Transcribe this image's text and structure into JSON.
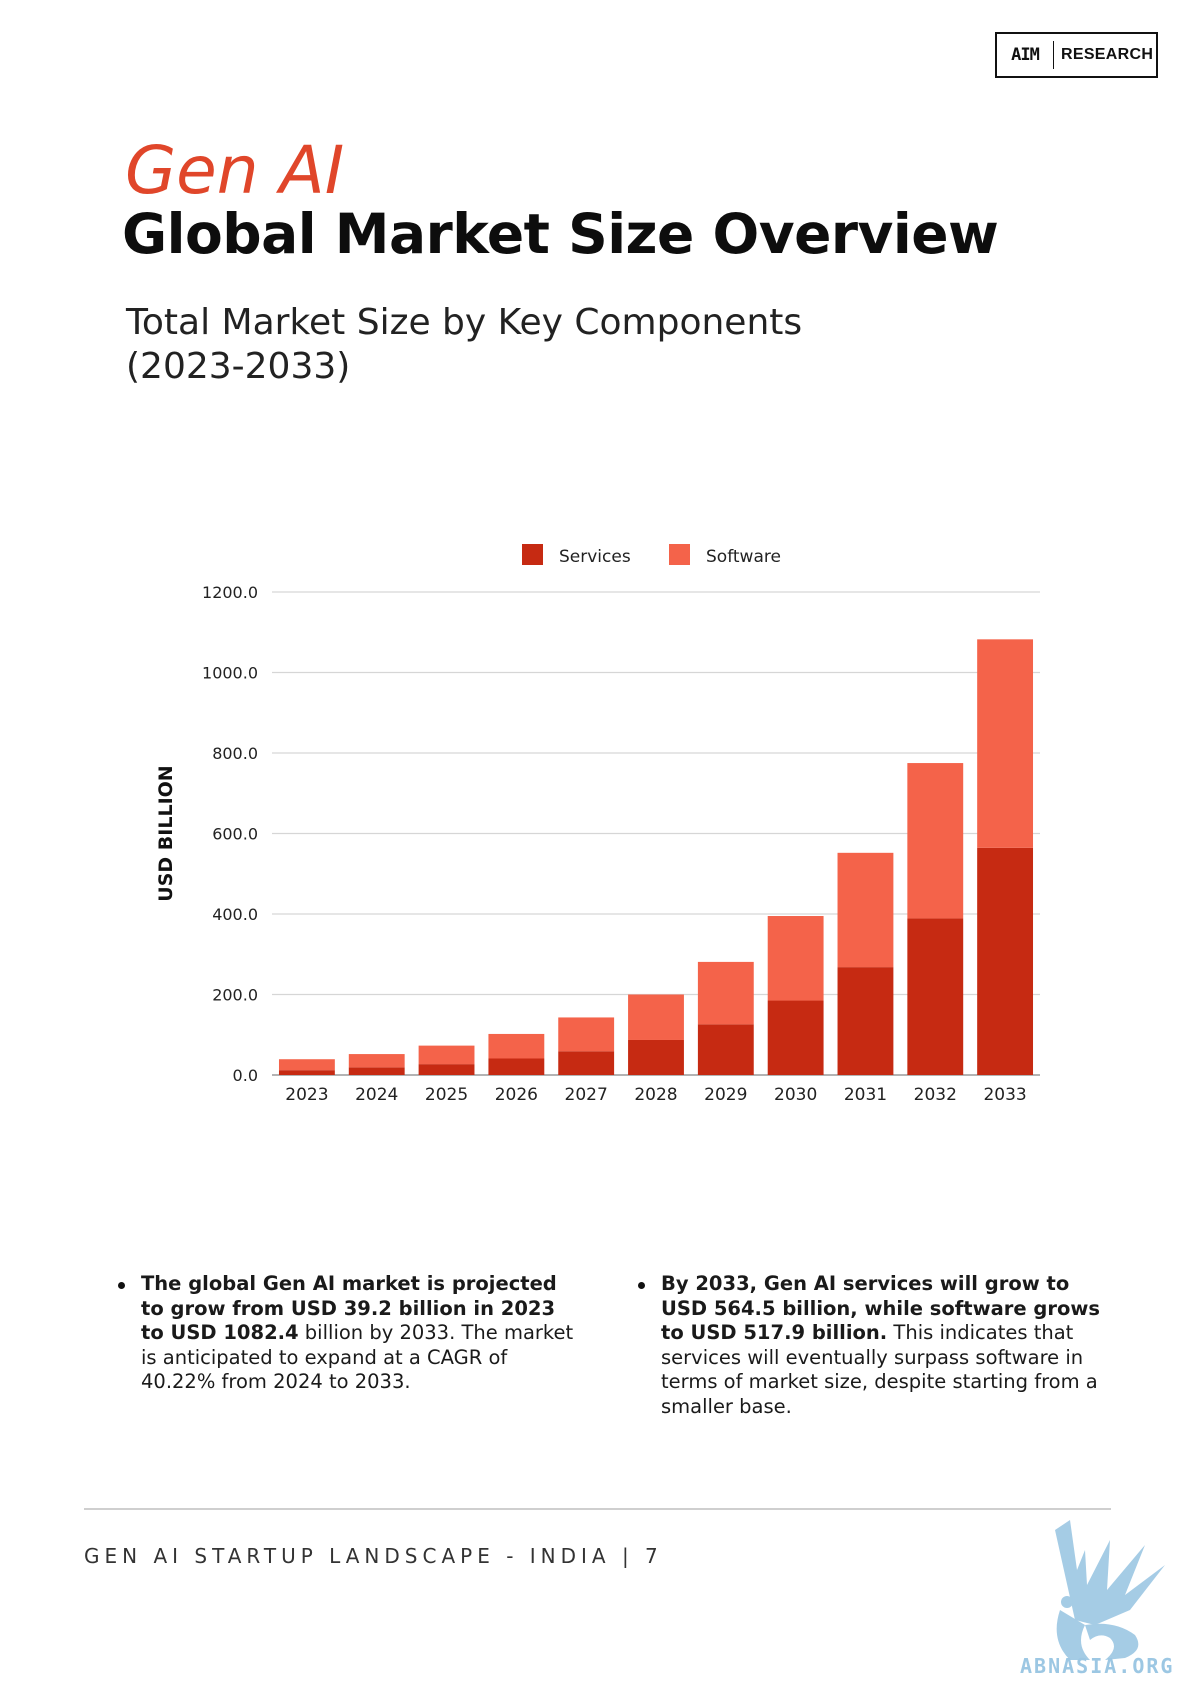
{
  "header": {
    "logo_mark": "AIM",
    "logo_text": "RESEARCH",
    "title_line1": "Gen AI",
    "title_line2": "Global Market Size Overview",
    "subtitle_line1": "Total Market Size by Key Components",
    "subtitle_line2": "(2023-2033)"
  },
  "chart_data": {
    "type": "bar",
    "stacked": true,
    "title": "",
    "xlabel": "",
    "ylabel": "USD BILLION",
    "ylim": [
      0,
      1200
    ],
    "yticks": [
      "0.0",
      "200.0",
      "400.0",
      "600.0",
      "800.0",
      "1000.0",
      "1200.0"
    ],
    "categories": [
      "2023",
      "2024",
      "2025",
      "2026",
      "2027",
      "2028",
      "2029",
      "2030",
      "2031",
      "2032",
      "2033"
    ],
    "series": [
      {
        "name": "Services",
        "color": "#c62a12",
        "values": [
          12,
          19,
          27,
          41,
          59,
          87,
          126,
          185,
          268,
          389,
          564.5
        ]
      },
      {
        "name": "Software",
        "color": "#f4634a",
        "values": [
          27.2,
          33,
          46,
          61,
          84,
          113,
          155,
          210,
          284,
          386,
          517.9
        ]
      }
    ],
    "legend_position": "top",
    "grid": true
  },
  "bullets": {
    "left": {
      "bold": "The global Gen AI market is projected to grow from USD 39.2 billion in 2023 to USD 1082.4",
      "normal": " billion by 2033. The market is anticipated to expand at a CAGR of 40.22% from 2024 to 2033."
    },
    "right": {
      "bold": "By 2033, Gen AI services will grow to USD 564.5 billion, while software grows to USD 517.9 billion.",
      "normal": " This indicates that services will eventually surpass software in terms of market size, despite starting from a smaller base."
    }
  },
  "footer": {
    "text": "GEN AI STARTUP LANDSCAPE - INDIA | 7",
    "watermark_text": "ABNASIA.ORG"
  }
}
